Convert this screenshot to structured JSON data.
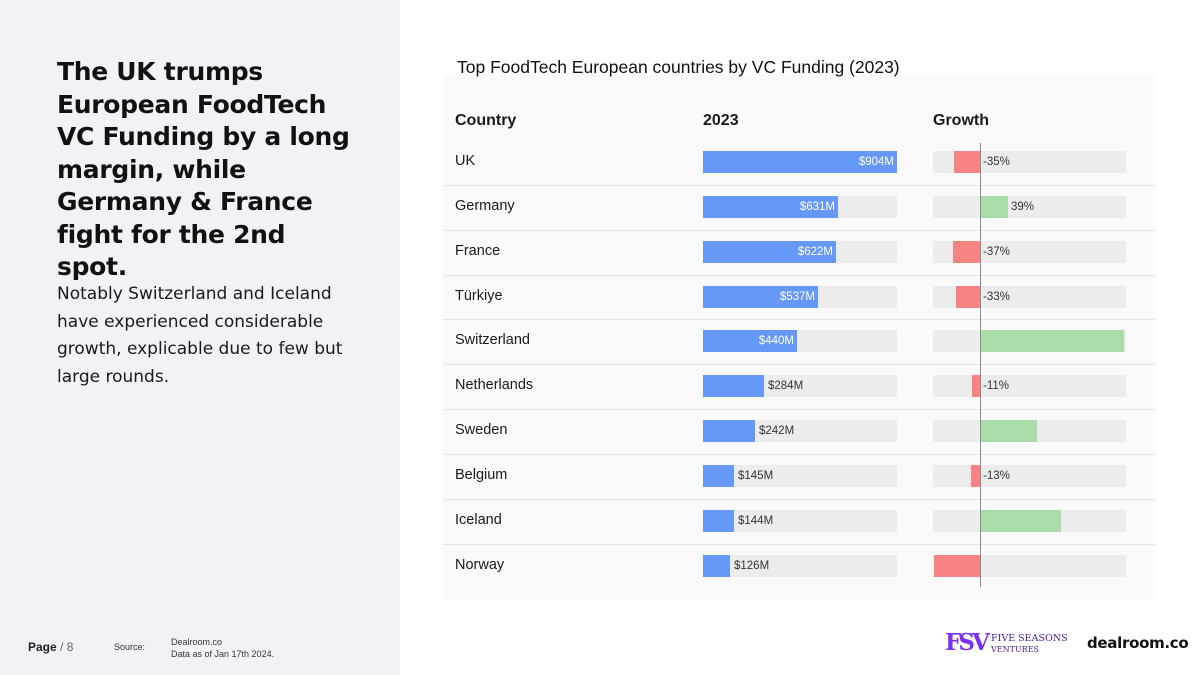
{
  "headline": "The UK trumps European FoodTech VC Funding by a long margin, while Germany & France fight for the 2nd spot.",
  "subtext": "Notably Switzerland and Iceland have experienced considerable growth, explicable due to few but large rounds.",
  "footer": {
    "page_label": "Page",
    "page_sep": " / ",
    "page_number": "8",
    "source_label": "Source:",
    "source_name": "Dealroom.co",
    "source_date": "Data as of Jan 17th 2024."
  },
  "logos": {
    "fsv_mark": "FSV",
    "fsv_name": "FIVE SEASONS",
    "fsv_sub": "VENTURES",
    "dealroom": "dealroom.co"
  },
  "colors": {
    "funding_bar": "#6698f8",
    "growth_positive": "#a9dca9",
    "growth_negative": "#f78383",
    "track": "#ececec"
  },
  "chart_data": {
    "type": "table",
    "title": "Top FoodTech European countries by VC Funding (2023)",
    "columns": [
      "Country",
      "2023",
      "Growth"
    ],
    "funding_unit": "USD millions",
    "growth_unit": "%",
    "rows": [
      {
        "country": "UK",
        "funding": 904,
        "funding_label": "$904M",
        "growth": -35,
        "growth_label": "-35%"
      },
      {
        "country": "Germany",
        "funding": 631,
        "funding_label": "$631M",
        "growth": 39,
        "growth_label": "39%"
      },
      {
        "country": "France",
        "funding": 622,
        "funding_label": "$622M",
        "growth": -37,
        "growth_label": "-37%"
      },
      {
        "country": "Türkiye",
        "funding": 537,
        "funding_label": "$537M",
        "growth": -33,
        "growth_label": "-33%"
      },
      {
        "country": "Switzerland",
        "funding": 440,
        "funding_label": "$440M",
        "growth": 197,
        "growth_label": "197%"
      },
      {
        "country": "Netherlands",
        "funding": 284,
        "funding_label": "$284M",
        "growth": -11,
        "growth_label": "-11%"
      },
      {
        "country": "Sweden",
        "funding": 242,
        "funding_label": "$242M",
        "growth": 78,
        "growth_label": "78%"
      },
      {
        "country": "Belgium",
        "funding": 145,
        "funding_label": "$145M",
        "growth": -13,
        "growth_label": "-13%"
      },
      {
        "country": "Iceland",
        "funding": 144,
        "funding_label": "$144M",
        "growth": 111,
        "growth_label": "111%"
      },
      {
        "country": "Norway",
        "funding": 126,
        "funding_label": "$126M",
        "growth": -63,
        "growth_label": "-63%"
      }
    ],
    "funding_max": 904,
    "growth_range": [
      -100,
      200
    ]
  }
}
